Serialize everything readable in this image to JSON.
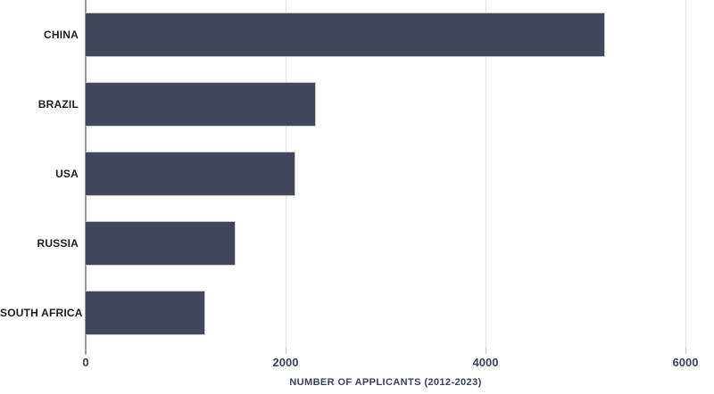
{
  "chart_data": {
    "type": "bar",
    "orientation": "horizontal",
    "title": "",
    "categories": [
      "CHINA",
      "BRAZIL",
      "USA",
      "RUSSIA",
      "SOUTH AFRICA"
    ],
    "values": [
      5200,
      2300,
      2100,
      1500,
      1200
    ],
    "xlabel": "NUMBER OF APPLICANTS (2012-2023)",
    "ylabel": "",
    "xlim": [
      0,
      6000
    ],
    "xticks": [
      0,
      2000,
      4000,
      6000
    ],
    "xtick_labels": [
      "0",
      "2000",
      "4000",
      "6000"
    ],
    "grid": true,
    "legend": false,
    "colors": {
      "bar": "#414659",
      "bar-border": "#cdcdcd",
      "gridline": "#e2e2e2",
      "axis-line": "#9c9c9c",
      "tick-mark": "#c4c4c4",
      "tick-label": "#3b4157",
      "axis-label": "#3b4157",
      "category-label": "#1c1c1c",
      "bg": "#ffffff"
    }
  }
}
